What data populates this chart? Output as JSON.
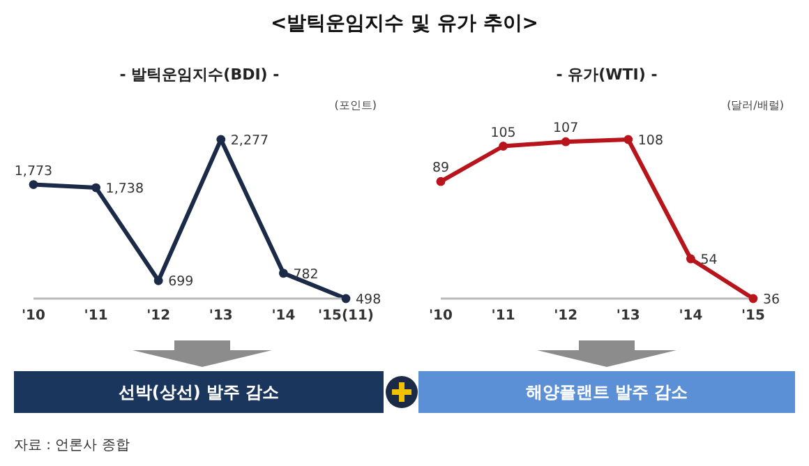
{
  "chart_data": [
    {
      "type": "line",
      "title": "<발틱운임지수 및 유가 추이>",
      "subtitle": "- 발틱운임지수(BDI) -",
      "ylabel": "(포인트)",
      "categories": [
        "'10",
        "'11",
        "'12",
        "'13",
        "'14",
        "'15(11)"
      ],
      "series": [
        {
          "color": "#1b2a47",
          "values": [
            1773,
            1738,
            699,
            2277,
            782,
            498
          ],
          "value_labels": [
            "1,773",
            "1,738",
            "699",
            "2,277",
            "782",
            "498"
          ]
        }
      ],
      "marker": "circle",
      "grid": false,
      "legend": false,
      "annotations": [
        "선박(상선) 발주 감소"
      ]
    },
    {
      "type": "line",
      "subtitle": "- 유가(WTI) -",
      "ylabel": "(달러/배럴)",
      "categories": [
        "'10",
        "'11",
        "'12",
        "'13",
        "'14",
        "'15"
      ],
      "series": [
        {
          "color": "#b8141b",
          "values": [
            89,
            105,
            107,
            108,
            54,
            36
          ]
        }
      ],
      "marker": "circle",
      "data_labels": true,
      "grid": false,
      "legend": false,
      "annotations": [
        "해양플랜트 발주 감소",
        "자료 : 언론사 종합"
      ]
    }
  ]
}
